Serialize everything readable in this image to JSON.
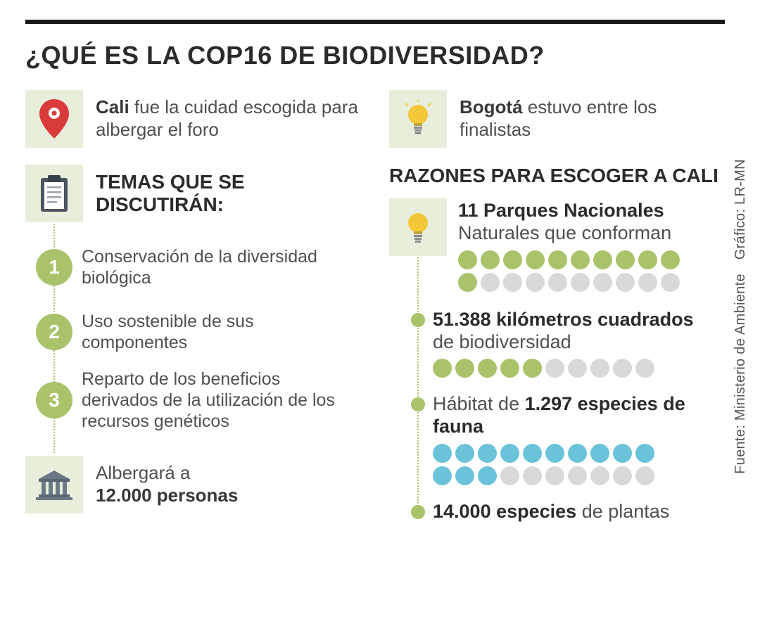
{
  "title": "¿QUÉ ES LA COP16 DE BIODIVERSIDAD?",
  "colors": {
    "text": "#383838",
    "text_light": "#505050",
    "green": "#aac36a",
    "green_bg": "#e7eedc",
    "grey_dot": "#d9d9d9",
    "blue": "#6ac3d9",
    "rule": "#1a1a1a",
    "bulb_yellow": "#f3c93a",
    "pin_red": "#d93a3a",
    "clip_dark": "#4a5560",
    "building": "#6b7a86"
  },
  "left": {
    "cali": {
      "bold": "Cali",
      "rest": " fue la cuidad escogida para albergar el foro"
    },
    "topics_header": "TEMAS QUE SE DISCUTIRÁN:",
    "topics": [
      {
        "n": "1",
        "text": "Conservación de la diversidad biológica"
      },
      {
        "n": "2",
        "text": "Uso sostenible de sus componentes"
      },
      {
        "n": "3",
        "text": "Reparto de los beneficios derivados de la utilización de los recursos genéticos"
      }
    ],
    "capacity_pre": "Albergará a ",
    "capacity_bold": "12.000 personas"
  },
  "right": {
    "bogota": {
      "bold": "Bogotá",
      "rest": " estuvo entre los finalistas"
    },
    "reasons_header": "RAZONES PARA ESCOGER A CALI",
    "parks": {
      "bold": "11 Parques Nacionales",
      "rest": "Naturales que conforman",
      "dots_filled": 11,
      "dots_total": 20,
      "dot_color": "#aac36a"
    },
    "km": {
      "bold": "51.388 kilómetros cuadrados",
      "rest": "de biodiversidad",
      "dots_filled": 5,
      "dots_total": 10,
      "dot_color": "#aac36a"
    },
    "fauna": {
      "pre": "Hábitat de ",
      "bold": "1.297 especies de fauna",
      "dots_filled": 13,
      "dots_total": 20,
      "dot_color": "#6ac3d9"
    },
    "plants": {
      "bold": "14.000 especies",
      "rest": " de plantas"
    }
  },
  "credit": {
    "source_label": "Fuente:",
    "source": "Ministerio de Ambiente",
    "graphic_label": "Gráfico:",
    "graphic": "LR-MN"
  }
}
